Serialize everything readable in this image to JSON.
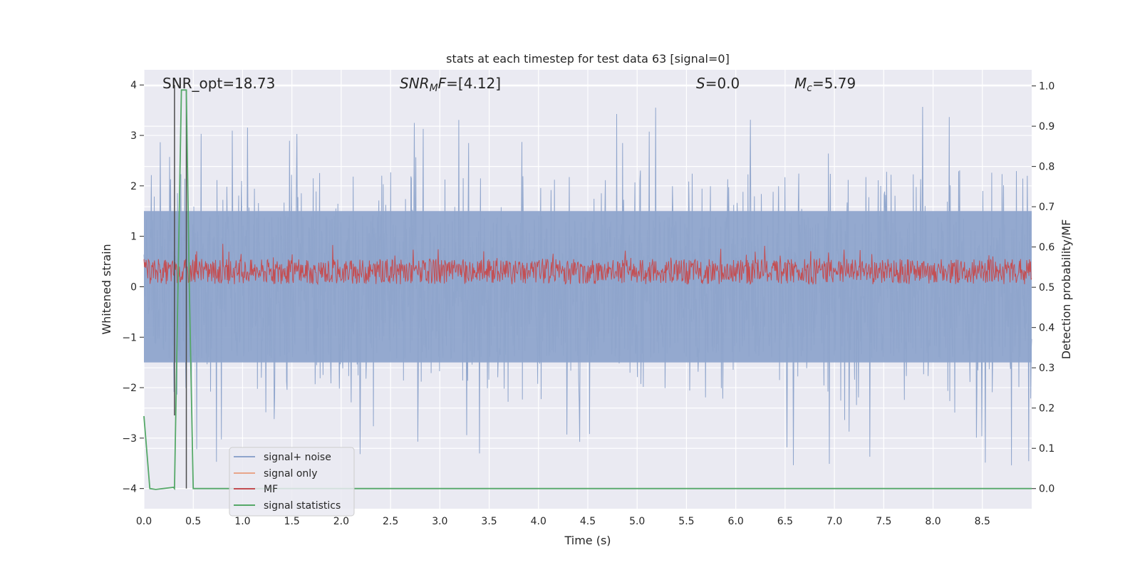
{
  "chart_data": {
    "type": "line",
    "title": "stats at each timestep for test data 63 [signal=0]",
    "xlabel": "Time (s)",
    "ylabel_left": "Whitened strain",
    "ylabel_right": "Detection probability/MF",
    "xlim": [
      0.0,
      9.0
    ],
    "ylim_left": [
      -4.4,
      4.3
    ],
    "ylim_right": [
      -0.05,
      1.04
    ],
    "x_ticks": [
      "0.0",
      "0.5",
      "1.0",
      "1.5",
      "2.0",
      "2.5",
      "3.0",
      "3.5",
      "4.0",
      "4.5",
      "5.0",
      "5.5",
      "6.0",
      "6.5",
      "7.0",
      "7.5",
      "8.0",
      "8.5"
    ],
    "y_left_ticks": [
      "−4",
      "−3",
      "−2",
      "−1",
      "0",
      "1",
      "2",
      "3",
      "4"
    ],
    "y_right_ticks": [
      "0.0",
      "0.1",
      "0.2",
      "0.3",
      "0.4",
      "0.5",
      "0.6",
      "0.7",
      "0.8",
      "0.9",
      "1.0"
    ],
    "grid": true,
    "legend_position": "lower-left",
    "annotations": {
      "snr_opt": "SNR_opt=18.73",
      "snr_mf_main": "SNR",
      "snr_mf_sub": "M",
      "snr_mf_main2": "F",
      "snr_mf_rest": "=[4.12]",
      "s_sym": "S",
      "s_rest": "=0.0",
      "mc_sym": "M",
      "mc_sub": "c",
      "mc_rest": "=5.79"
    },
    "series": [
      {
        "name": "signal+ noise",
        "color": "#8fa5cc",
        "axis": "left",
        "description_values": {
          "baseline_band": [
            -1.5,
            1.5
          ],
          "peak_max": 3.8,
          "peak_min": -4.0
        }
      },
      {
        "name": "signal only",
        "color": "#e8a58a",
        "axis": "left",
        "description_values": {
          "constant": 0.0
        }
      },
      {
        "name": "MF",
        "color": "#c44e52",
        "axis": "left",
        "description_values": {
          "band": [
            0.0,
            0.7
          ]
        }
      },
      {
        "name": "signal statistics",
        "color": "#55a868",
        "axis": "right",
        "x": [
          0.0,
          0.06,
          0.12,
          0.3,
          0.31,
          0.38,
          0.43,
          0.46,
          0.5,
          0.6,
          9.0
        ],
        "y": [
          0.18,
          0.0,
          -0.002,
          0.003,
          0.0,
          0.99,
          0.99,
          0.5,
          0.0,
          0.0,
          0.0
        ]
      }
    ],
    "spikes": [
      {
        "x": 0.31,
        "y": [
          -2.55,
          4.0
        ]
      },
      {
        "x": 0.43,
        "y": [
          -4.0,
          3.9
        ]
      }
    ]
  }
}
